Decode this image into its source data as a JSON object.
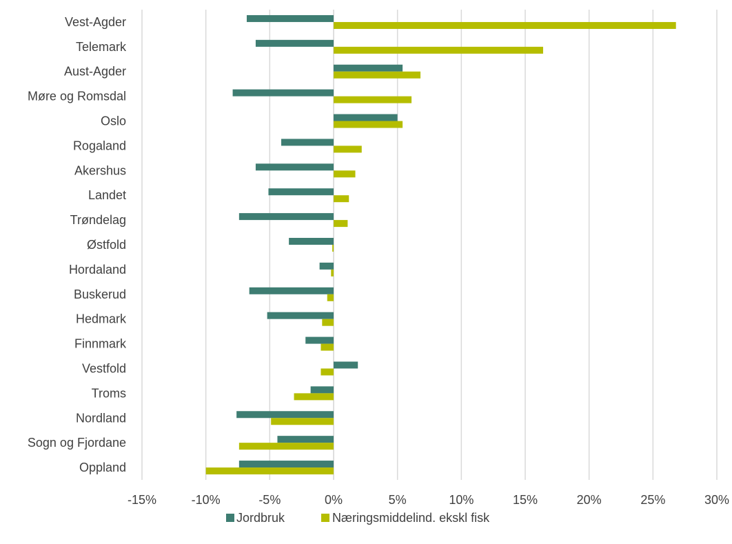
{
  "chart_data": {
    "type": "bar",
    "orientation": "horizontal",
    "categories": [
      "Vest-Agder",
      "Telemark",
      "Aust-Agder",
      "Møre og Romsdal",
      "Oslo",
      "Rogaland",
      "Akershus",
      "Landet",
      "Trøndelag",
      "Østfold",
      "Hordaland",
      "Buskerud",
      "Hedmark",
      "Finnmark",
      "Vestfold",
      "Troms",
      "Nordland",
      "Sogn og Fjordane",
      "Oppland"
    ],
    "series": [
      {
        "name": "Jordbruk",
        "color": "#3e7d72",
        "values": [
          -6.8,
          -6.1,
          5.4,
          -7.9,
          5.0,
          -4.1,
          -6.1,
          -5.1,
          -7.4,
          -3.5,
          -1.1,
          -6.6,
          -5.2,
          -2.2,
          1.9,
          -1.8,
          -7.6,
          -4.4,
          -7.4
        ]
      },
      {
        "name": "Næringsmiddelind. ekskl fisk",
        "color": "#b5bd00",
        "values": [
          26.8,
          16.4,
          6.8,
          6.1,
          5.4,
          2.2,
          1.7,
          1.2,
          1.1,
          -0.1,
          -0.2,
          -0.5,
          -0.9,
          -1.0,
          -1.0,
          -3.1,
          -4.9,
          -7.4,
          -10.0
        ]
      }
    ],
    "xlim": [
      -15,
      30
    ],
    "xticks": [
      -15,
      -10,
      -5,
      0,
      5,
      10,
      15,
      20,
      25,
      30
    ],
    "xtick_labels": [
      "-15%",
      "-10%",
      "-5%",
      "0%",
      "5%",
      "10%",
      "15%",
      "20%",
      "25%",
      "30%"
    ],
    "grid": true,
    "legend_position": "bottom",
    "title": "",
    "xlabel": "",
    "ylabel": ""
  }
}
